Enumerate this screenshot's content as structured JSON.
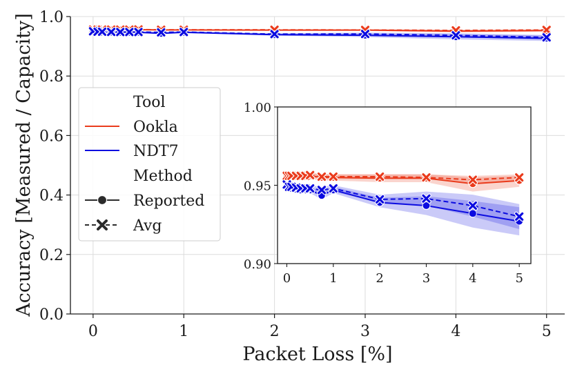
{
  "chart_data": {
    "type": "line",
    "xlabel": "Packet Loss [%]",
    "ylabel": "Accuracy [Measured / Capacity]",
    "xlim": [
      -0.25,
      5.2
    ],
    "ylim": [
      0.0,
      1.0
    ],
    "xticks": [
      "0",
      "1",
      "2",
      "3",
      "4",
      "5"
    ],
    "yticks": [
      "0.0",
      "0.2",
      "0.4",
      "0.6",
      "0.8",
      "1.0"
    ],
    "grid": true,
    "legend": {
      "placement": "left",
      "tool_title": "Tool",
      "method_title": "Method",
      "entries": [
        {
          "label": "Ookla",
          "color": "#ea3b1c",
          "kind": "tool"
        },
        {
          "label": "NDT7",
          "color": "#0c0ce0",
          "kind": "tool"
        },
        {
          "label": "Reported",
          "marker": "circle",
          "dash": "solid",
          "kind": "method"
        },
        {
          "label": "Avg",
          "marker": "x",
          "dash": "dashed",
          "kind": "method"
        }
      ]
    },
    "series": [
      {
        "tool": "Ookla",
        "method": "Reported",
        "color": "#ea3b1c",
        "dash": "solid",
        "marker": "circle",
        "x": [
          0,
          0.05,
          0.1,
          0.2,
          0.3,
          0.4,
          0.5,
          0.75,
          1,
          2,
          3,
          4,
          5
        ],
        "y": [
          0.9555,
          0.9555,
          0.9555,
          0.9555,
          0.9555,
          0.9555,
          0.956,
          0.955,
          0.955,
          0.9545,
          0.9545,
          0.951,
          0.953
        ],
        "band_low": [
          0.954,
          0.954,
          0.954,
          0.954,
          0.954,
          0.954,
          0.954,
          0.953,
          0.953,
          0.952,
          0.952,
          0.946,
          0.949
        ],
        "band_high": [
          0.957,
          0.957,
          0.957,
          0.957,
          0.957,
          0.957,
          0.958,
          0.957,
          0.957,
          0.957,
          0.957,
          0.955,
          0.956
        ]
      },
      {
        "tool": "Ookla",
        "method": "Avg",
        "color": "#ea3b1c",
        "dash": "dashed",
        "marker": "x",
        "x": [
          0,
          0.05,
          0.1,
          0.2,
          0.3,
          0.4,
          0.5,
          0.75,
          1,
          2,
          3,
          4,
          5
        ],
        "y": [
          0.956,
          0.956,
          0.956,
          0.956,
          0.956,
          0.956,
          0.9565,
          0.9555,
          0.9555,
          0.9555,
          0.955,
          0.9535,
          0.955
        ],
        "band_low": [
          0.955,
          0.955,
          0.955,
          0.955,
          0.955,
          0.955,
          0.955,
          0.954,
          0.954,
          0.954,
          0.954,
          0.951,
          0.953
        ],
        "band_high": [
          0.957,
          0.957,
          0.957,
          0.957,
          0.957,
          0.957,
          0.958,
          0.957,
          0.957,
          0.957,
          0.957,
          0.956,
          0.957
        ]
      },
      {
        "tool": "NDT7",
        "method": "Reported",
        "color": "#0c0ce0",
        "dash": "solid",
        "marker": "circle",
        "x": [
          0,
          0.05,
          0.1,
          0.2,
          0.3,
          0.4,
          0.5,
          0.75,
          1,
          2,
          3,
          4,
          5
        ],
        "y": [
          0.9495,
          0.948,
          0.948,
          0.9475,
          0.947,
          0.947,
          0.947,
          0.9435,
          0.947,
          0.939,
          0.937,
          0.932,
          0.927
        ],
        "band_low": [
          0.948,
          0.946,
          0.946,
          0.946,
          0.945,
          0.945,
          0.945,
          0.941,
          0.945,
          0.936,
          0.931,
          0.923,
          0.918
        ],
        "band_high": [
          0.951,
          0.95,
          0.95,
          0.949,
          0.949,
          0.949,
          0.949,
          0.946,
          0.949,
          0.942,
          0.943,
          0.94,
          0.936
        ]
      },
      {
        "tool": "NDT7",
        "method": "Avg",
        "color": "#0c0ce0",
        "dash": "dashed",
        "marker": "x",
        "x": [
          0,
          0.05,
          0.1,
          0.2,
          0.3,
          0.4,
          0.5,
          0.75,
          1,
          2,
          3,
          4,
          5
        ],
        "y": [
          0.9505,
          0.949,
          0.949,
          0.9485,
          0.948,
          0.948,
          0.948,
          0.947,
          0.948,
          0.941,
          0.9415,
          0.937,
          0.93
        ],
        "band_low": [
          0.949,
          0.947,
          0.947,
          0.947,
          0.946,
          0.946,
          0.946,
          0.945,
          0.946,
          0.939,
          0.937,
          0.93,
          0.922
        ],
        "band_high": [
          0.952,
          0.951,
          0.951,
          0.95,
          0.95,
          0.95,
          0.95,
          0.949,
          0.95,
          0.944,
          0.946,
          0.944,
          0.938
        ]
      }
    ],
    "inset": {
      "xlim": [
        -0.2,
        5.25
      ],
      "ylim": [
        0.9,
        1.0
      ],
      "xticks": [
        "0",
        "1",
        "2",
        "3",
        "4",
        "5"
      ],
      "yticks": [
        "0.90",
        "0.95",
        "1.00"
      ],
      "grid": false
    }
  }
}
